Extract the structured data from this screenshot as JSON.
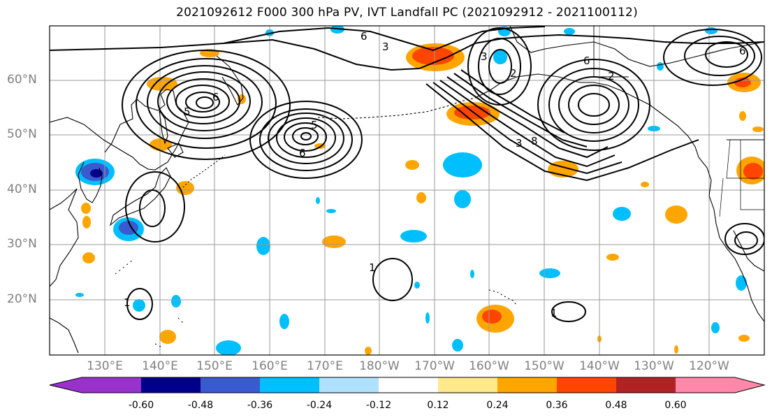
{
  "title": "2021092612 F000 300 hPa PV, IVT Landfall PC (2021092912 - 2021100112)",
  "lat_labels": [
    "60°N",
    "50°N",
    "40°N",
    "30°N",
    "20°N"
  ],
  "lon_labels": [
    "130°E",
    "140°E",
    "150°E",
    "160°E",
    "170°E",
    "180°W",
    "170°W",
    "160°W",
    "150°W",
    "140°W",
    "130°W",
    "120°W"
  ],
  "contour_labels": [
    "6",
    "3",
    "5",
    "6",
    "5",
    "6",
    "3",
    "2",
    "6",
    "3",
    "8",
    "2",
    "1",
    "1",
    "1",
    "6"
  ],
  "colorbar": {
    "colors": [
      "#9932CC",
      "#00008B",
      "#3A5AD0",
      "#00BFFF",
      "#B0E2FF",
      "#FFFFFF",
      "#FFE98A",
      "#FFA500",
      "#FF4500",
      "#B22222",
      "#FF88AA"
    ],
    "tick_labels": [
      "-0.60",
      "-0.48",
      "-0.36",
      "-0.24",
      "-0.12",
      "0.12",
      "0.24",
      "0.36",
      "0.48",
      "0.60"
    ]
  },
  "colors": {
    "ocean": "#ffffff",
    "grid": "#9a9a9a",
    "contour": "#000000",
    "coast": "#000000",
    "axis_label": "#808080"
  }
}
